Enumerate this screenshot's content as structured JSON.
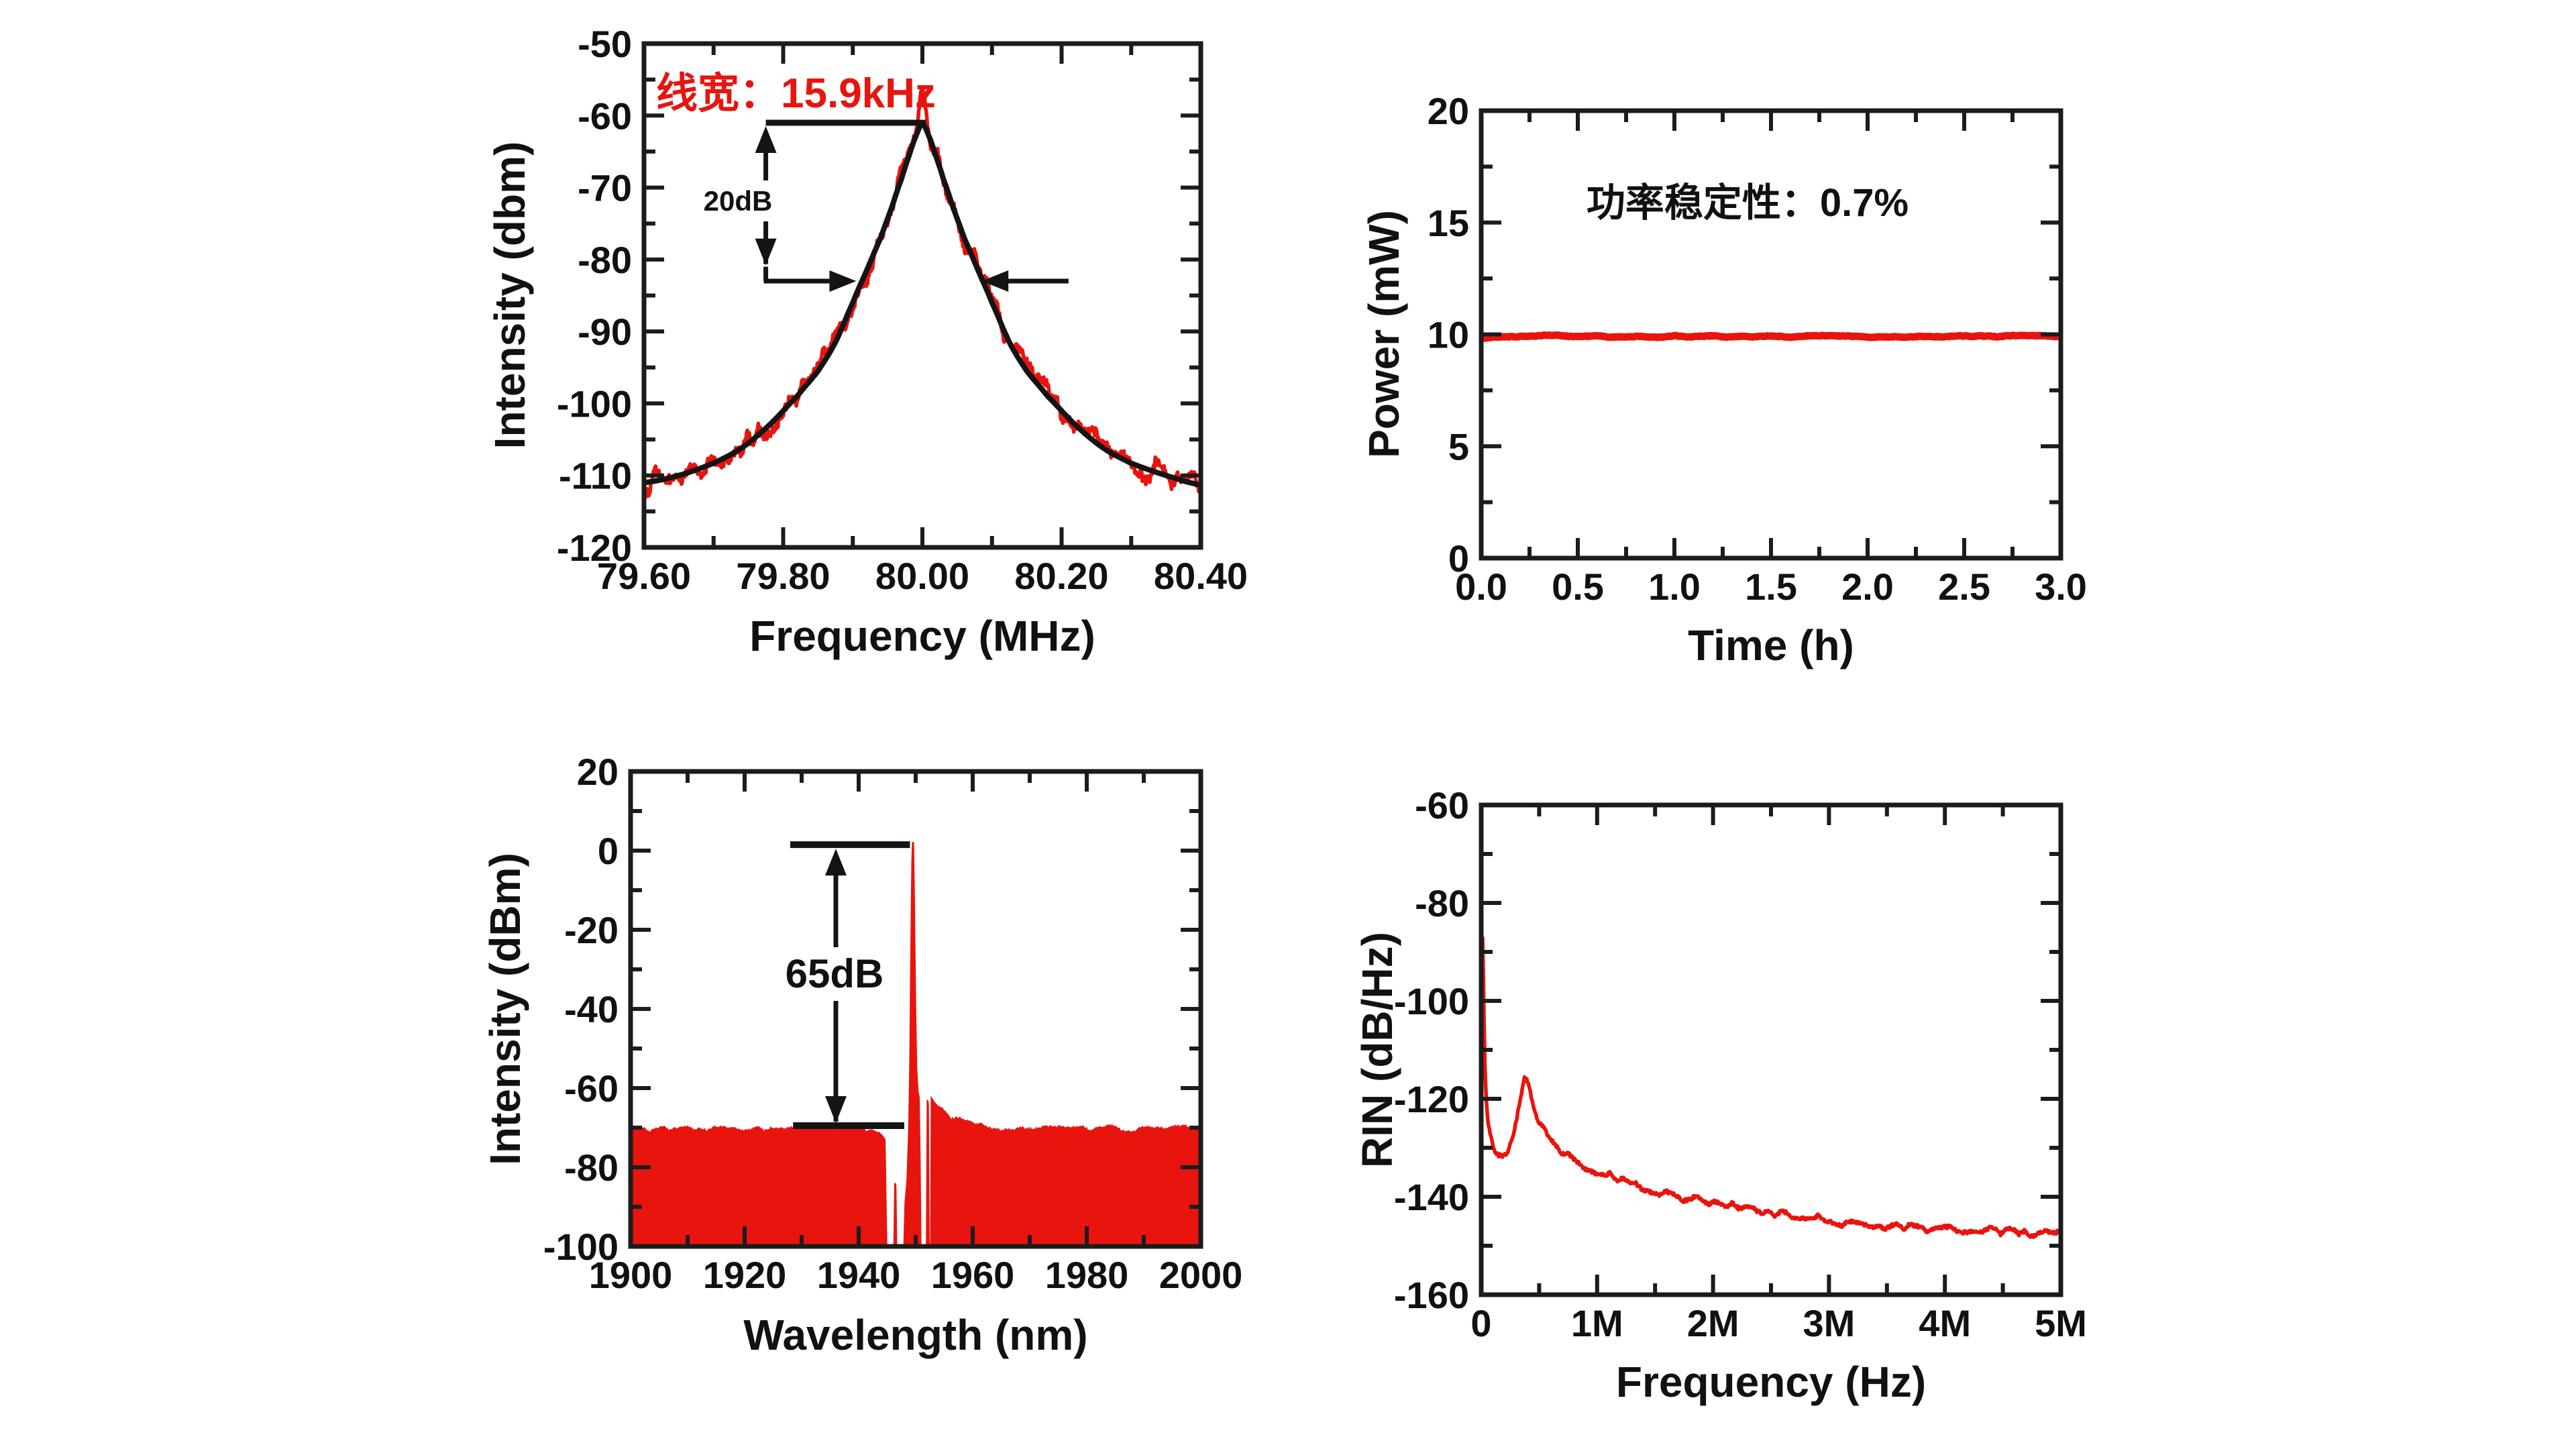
{
  "figure": {
    "background": "#ffffff",
    "axis_color": "#1c1c1c",
    "trace_red": "#e8140e",
    "fit_black": "#141414"
  },
  "chart_data": {
    "linewidth": {
      "type": "line",
      "xlabel": "Frequency (MHz)",
      "ylabel": "Intensity (dbm)",
      "xlim": [
        79.6,
        80.4
      ],
      "ylim": [
        -120,
        -50
      ],
      "xticks": [
        79.6,
        79.8,
        80.0,
        80.2,
        80.4
      ],
      "xtick_labels": [
        "79.60",
        "79.80",
        "80.00",
        "80.20",
        "80.40"
      ],
      "yticks": [
        -120,
        -110,
        -100,
        -90,
        -80,
        -70,
        -60,
        -50
      ],
      "ytick_labels": [
        "-120",
        "-110",
        "-100",
        "-90",
        "-80",
        "-70",
        "-60",
        "-50"
      ],
      "annotations": {
        "linewidth_text": "线宽：15.9kHz",
        "span_text": "20dB",
        "ref_line_db": -61,
        "ref_line_x": [
          79.775,
          80.005
        ],
        "span_arrow_x": 79.775,
        "span_bottom_db": -81,
        "width_arrow_db": -83,
        "left_arrow_tip_mhz": 79.905,
        "right_arrow_tip_mhz": 80.085,
        "right_arrow_tail_mhz": 80.21
      },
      "series": [
        {
          "name": "measured-spectrum",
          "color": "#e8140e",
          "noise_db": 2.3,
          "peak_extra_db": 5.2,
          "peak_extra_center": 80.0,
          "peak_extra_sigma": 0.0075
        },
        {
          "name": "lorentzian-fit",
          "color": "#141414",
          "points": [
            [
              79.6,
              -111
            ],
            [
              79.65,
              -110
            ],
            [
              79.7,
              -108.3
            ],
            [
              79.74,
              -106.2
            ],
            [
              79.78,
              -103
            ],
            [
              79.82,
              -99
            ],
            [
              79.85,
              -95.5
            ],
            [
              79.875,
              -91.5
            ],
            [
              79.9,
              -86
            ],
            [
              79.92,
              -81.5
            ],
            [
              79.94,
              -77
            ],
            [
              79.955,
              -73
            ],
            [
              79.97,
              -68.8
            ],
            [
              79.98,
              -65.8
            ],
            [
              79.99,
              -63
            ],
            [
              80.0,
              -61.2
            ],
            [
              80.01,
              -63
            ],
            [
              80.02,
              -65.8
            ],
            [
              80.03,
              -68.8
            ],
            [
              80.045,
              -73
            ],
            [
              80.06,
              -77
            ],
            [
              80.08,
              -81.5
            ],
            [
              80.1,
              -86
            ],
            [
              80.125,
              -91.5
            ],
            [
              80.15,
              -95.5
            ],
            [
              80.18,
              -99
            ],
            [
              80.22,
              -103
            ],
            [
              80.26,
              -106.2
            ],
            [
              80.3,
              -108.3
            ],
            [
              80.35,
              -110
            ],
            [
              80.4,
              -111.3
            ]
          ]
        }
      ]
    },
    "power": {
      "type": "line",
      "xlabel": "Time (h)",
      "ylabel": "Power (mW)",
      "xlim": [
        0,
        3
      ],
      "ylim": [
        0,
        20
      ],
      "xticks": [
        0,
        0.5,
        1.0,
        1.5,
        2.0,
        2.5,
        3.0
      ],
      "xtick_labels": [
        "0.0",
        "0.5",
        "1.0",
        "1.5",
        "2.0",
        "2.5",
        "3.0"
      ],
      "yticks": [
        0,
        5,
        10,
        15,
        20
      ],
      "ytick_labels": [
        "0",
        "5",
        "10",
        "15",
        "20"
      ],
      "annotations": {
        "stability_text": "功率稳定性：0.7%",
        "text_xy": [
          1.38,
          15.9
        ]
      },
      "series": [
        {
          "name": "output-power",
          "color": "#e8140e",
          "noise_mw": 0.06,
          "points": [
            [
              0,
              9.82
            ],
            [
              0.08,
              9.9
            ],
            [
              0.3,
              9.93
            ],
            [
              0.8,
              9.9
            ],
            [
              1.5,
              9.92
            ],
            [
              2.2,
              9.9
            ],
            [
              3.0,
              9.92
            ]
          ]
        }
      ]
    },
    "spectrum": {
      "type": "area",
      "xlabel": "Wavelength (nm)",
      "ylabel": "Intensity (dBm)",
      "xlim": [
        1900,
        2000
      ],
      "ylim": [
        -100,
        20
      ],
      "xticks": [
        1900,
        1920,
        1940,
        1960,
        1980,
        2000
      ],
      "xtick_labels": [
        "1900",
        "1920",
        "1940",
        "1960",
        "1980",
        "2000"
      ],
      "yticks": [
        -100,
        -80,
        -60,
        -40,
        -20,
        0,
        20
      ],
      "ytick_labels": [
        "-100",
        "-80",
        "-60",
        "-40",
        "-20",
        "0",
        "20"
      ],
      "annotations": {
        "span_text": "65dB",
        "top_bar": {
          "x": [
            1928,
            1949
          ],
          "db": 1.5
        },
        "bottom_bar": {
          "x": [
            1928.5,
            1948
          ],
          "db": -69.5
        },
        "arrow_x": 1936,
        "text_xy": [
          1936,
          -31
        ]
      },
      "series": [
        {
          "name": "optical-spectrum",
          "color": "#e8140e",
          "baseline_db": -100,
          "peak_nm": 1949.5,
          "peak_db": 2.0,
          "floor_db": -70.4,
          "ripple_db": 1.0,
          "ripple_regions": [
            [
              1900,
              1944
            ],
            [
              1953.5,
              2000
            ]
          ],
          "edge_points": [
            [
              1900,
              -70.5
            ],
            [
              1906,
              -70.2
            ],
            [
              1912,
              -70.6
            ],
            [
              1918,
              -70.1
            ],
            [
              1924,
              -70.5
            ],
            [
              1930,
              -70.2
            ],
            [
              1936,
              -70.5
            ],
            [
              1941,
              -70.2
            ],
            [
              1943.5,
              -70.8
            ],
            [
              1944.6,
              -73
            ],
            [
              1944.9,
              -100
            ],
            [
              1946.2,
              -100
            ],
            [
              1946.35,
              -84
            ],
            [
              1946.5,
              -84.5
            ],
            [
              1946.65,
              -100
            ],
            [
              1947.95,
              -100
            ],
            [
              1948.15,
              -89
            ],
            [
              1948.5,
              -83
            ],
            [
              1948.8,
              -70
            ],
            [
              1949.0,
              -52
            ],
            [
              1949.2,
              -22
            ],
            [
              1949.35,
              -3
            ],
            [
              1949.45,
              2.0
            ],
            [
              1949.6,
              2.0
            ],
            [
              1949.75,
              -12
            ],
            [
              1949.95,
              -38
            ],
            [
              1950.15,
              -55
            ],
            [
              1950.4,
              -61
            ],
            [
              1950.6,
              -62.5
            ],
            [
              1950.75,
              -78
            ],
            [
              1950.9,
              -100
            ],
            [
              1951.9,
              -100
            ],
            [
              1952.05,
              -63
            ],
            [
              1952.2,
              -64
            ],
            [
              1952.35,
              -100
            ],
            [
              1952.65,
              -100
            ],
            [
              1952.75,
              -62.5
            ],
            [
              1953.2,
              -63.5
            ],
            [
              1954.2,
              -65
            ],
            [
              1955.5,
              -66.8
            ],
            [
              1957,
              -68
            ],
            [
              1959,
              -69
            ],
            [
              1962,
              -69.8
            ],
            [
              1966,
              -70.3
            ],
            [
              1972,
              -70.1
            ],
            [
              1978,
              -70.5
            ],
            [
              1984,
              -70.2
            ],
            [
              1990,
              -70.5
            ],
            [
              1996,
              -70.2
            ],
            [
              2000,
              -70.4
            ]
          ]
        }
      ]
    },
    "rin": {
      "type": "line",
      "xlabel": "Frequency (Hz)",
      "ylabel": "RIN (dB/Hz)",
      "xlim": [
        0,
        5
      ],
      "ylim": [
        -160,
        -60
      ],
      "xticks": [
        0,
        1,
        2,
        3,
        4,
        5
      ],
      "xtick_labels": [
        "0",
        "1M",
        "2M",
        "3M",
        "4M",
        "5M"
      ],
      "yticks": [
        -160,
        -140,
        -120,
        -100,
        -80,
        -60
      ],
      "ytick_labels": [
        "-160",
        "-140",
        "-120",
        "-100",
        "-80",
        "-60"
      ],
      "annotations": {},
      "series": [
        {
          "name": "rin-trace",
          "color": "#e8140e",
          "noise_db": 1.2,
          "relaxation_peak": {
            "x_mhz": 0.375,
            "db": -115.5
          },
          "points": [
            [
              0.012,
              -87
            ],
            [
              0.02,
              -97
            ],
            [
              0.03,
              -112
            ],
            [
              0.05,
              -123
            ],
            [
              0.08,
              -128
            ],
            [
              0.12,
              -131
            ],
            [
              0.17,
              -132
            ],
            [
              0.22,
              -130.5
            ],
            [
              0.27,
              -127.5
            ],
            [
              0.31,
              -123.5
            ],
            [
              0.345,
              -119
            ],
            [
              0.375,
              -115.5
            ],
            [
              0.4,
              -116.5
            ],
            [
              0.44,
              -120.5
            ],
            [
              0.5,
              -124.5
            ],
            [
              0.58,
              -127.5
            ],
            [
              0.7,
              -130.5
            ],
            [
              0.85,
              -133
            ],
            [
              1.0,
              -134.8
            ],
            [
              1.2,
              -136.5
            ],
            [
              1.5,
              -138.7
            ],
            [
              1.8,
              -140.3
            ],
            [
              2.1,
              -141.8
            ],
            [
              2.5,
              -143.3
            ],
            [
              2.9,
              -144.6
            ],
            [
              3.3,
              -145.5
            ],
            [
              3.7,
              -146.2
            ],
            [
              4.1,
              -146.7
            ],
            [
              4.5,
              -147.1
            ],
            [
              5.0,
              -147.6
            ]
          ]
        }
      ]
    }
  }
}
